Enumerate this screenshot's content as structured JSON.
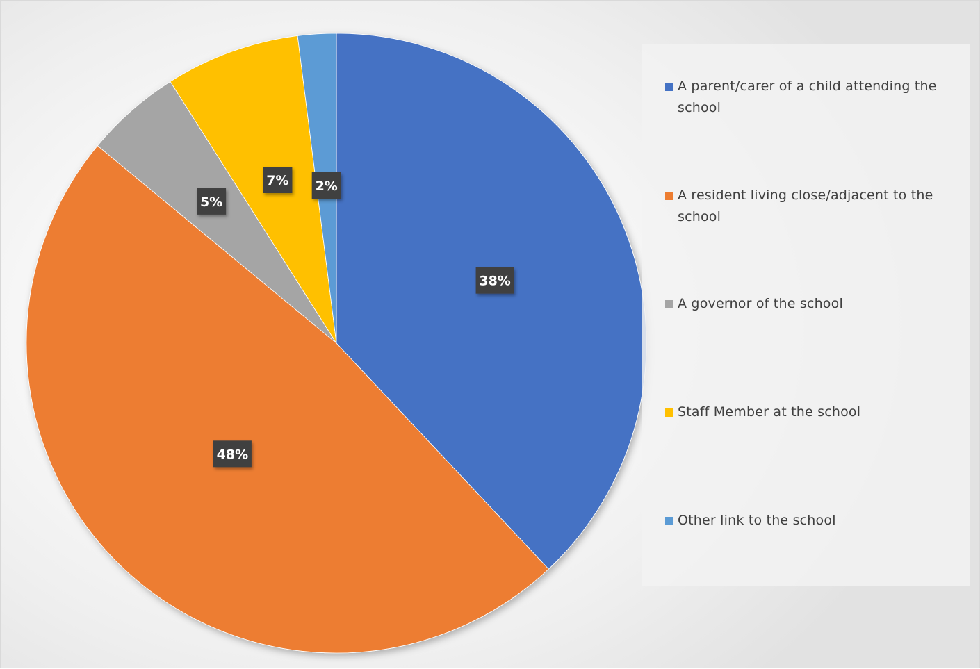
{
  "chart_data": {
    "type": "pie",
    "title": "",
    "slices": [
      {
        "name": "A parent/carer of a child attending the school",
        "value": 38,
        "label": "38%",
        "color": "#4472C4"
      },
      {
        "name": "A resident living close/adjacent to the school",
        "value": 48,
        "label": "48%",
        "color": "#ED7D31"
      },
      {
        "name": "A governor of the school",
        "value": 5,
        "label": "5%",
        "color": "#A5A5A5"
      },
      {
        "name": "Staff Member at the school",
        "value": 7,
        "label": "7%",
        "color": "#FFC000"
      },
      {
        "name": "Other link to the school",
        "value": 2,
        "label": "2%",
        "color": "#5B9BD5"
      }
    ],
    "legend_position": "right",
    "data_label_style": "dark callout"
  }
}
